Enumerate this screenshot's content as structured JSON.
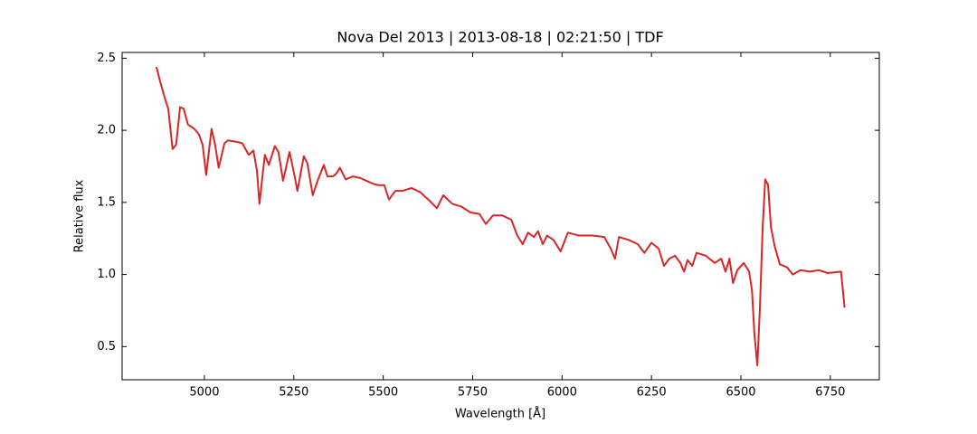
{
  "chart_data": {
    "type": "line",
    "title": "Nova Del 2013 | 2013-08-18 | 02:21:50 | TDF",
    "x_label": "Wavelength [Å]",
    "y_label": "Relative flux",
    "x": [
      4866,
      4876,
      4891,
      4899,
      4911,
      4921,
      4932,
      4942,
      4954,
      4972,
      4985,
      4995,
      5005,
      5020,
      5030,
      5040,
      5056,
      5066,
      5091,
      5106,
      5124,
      5137,
      5147,
      5154,
      5169,
      5180,
      5197,
      5207,
      5220,
      5238,
      5250,
      5260,
      5278,
      5288,
      5303,
      5318,
      5334,
      5344,
      5359,
      5369,
      5379,
      5395,
      5415,
      5435,
      5453,
      5471,
      5486,
      5503,
      5516,
      5534,
      5554,
      5579,
      5604,
      5630,
      5650,
      5668,
      5693,
      5719,
      5744,
      5769,
      5787,
      5807,
      5832,
      5858,
      5875,
      5890,
      5905,
      5921,
      5933,
      5946,
      5958,
      5976,
      5996,
      6016,
      6047,
      6085,
      6118,
      6136,
      6148,
      6159,
      6186,
      6212,
      6230,
      6250,
      6270,
      6285,
      6300,
      6316,
      6331,
      6341,
      6351,
      6364,
      6376,
      6402,
      6427,
      6445,
      6457,
      6468,
      6478,
      6490,
      6508,
      6523,
      6531,
      6538,
      6546,
      6553,
      6561,
      6568,
      6576,
      6584,
      6594,
      6609,
      6629,
      6645,
      6667,
      6693,
      6718,
      6743,
      6780,
      6790
    ],
    "series": [
      {
        "name": "Flux",
        "color": "#d62728",
        "values": [
          2.44,
          2.34,
          2.21,
          2.15,
          1.87,
          1.9,
          2.16,
          2.15,
          2.04,
          2.01,
          1.97,
          1.9,
          1.69,
          2.01,
          1.9,
          1.74,
          1.91,
          1.93,
          1.92,
          1.91,
          1.83,
          1.86,
          1.72,
          1.49,
          1.83,
          1.76,
          1.89,
          1.85,
          1.65,
          1.85,
          1.71,
          1.58,
          1.82,
          1.77,
          1.55,
          1.66,
          1.76,
          1.68,
          1.68,
          1.7,
          1.74,
          1.66,
          1.68,
          1.67,
          1.65,
          1.63,
          1.62,
          1.62,
          1.52,
          1.58,
          1.58,
          1.6,
          1.57,
          1.51,
          1.46,
          1.55,
          1.49,
          1.47,
          1.43,
          1.42,
          1.35,
          1.41,
          1.41,
          1.38,
          1.27,
          1.21,
          1.29,
          1.26,
          1.3,
          1.21,
          1.27,
          1.24,
          1.16,
          1.29,
          1.27,
          1.27,
          1.26,
          1.18,
          1.11,
          1.26,
          1.24,
          1.21,
          1.15,
          1.22,
          1.18,
          1.06,
          1.11,
          1.13,
          1.08,
          1.02,
          1.1,
          1.06,
          1.15,
          1.13,
          1.08,
          1.11,
          1.02,
          1.11,
          0.94,
          1.03,
          1.08,
          1.02,
          0.89,
          0.58,
          0.37,
          0.76,
          1.33,
          1.66,
          1.62,
          1.33,
          1.2,
          1.07,
          1.05,
          1.0,
          1.03,
          1.02,
          1.03,
          1.01,
          1.02,
          0.77
        ]
      }
    ],
    "xlim": [
      4770,
      6887
    ],
    "xticks": [
      5000,
      5250,
      5500,
      5750,
      6000,
      6250,
      6500,
      6750
    ],
    "ylim": [
      0.27,
      2.54
    ],
    "yticks": [
      0.5,
      {
        "value": 1,
        "label": "1.0"
      },
      1.5,
      {
        "value": 2,
        "label": "2.0"
      },
      2.5
    ]
  }
}
